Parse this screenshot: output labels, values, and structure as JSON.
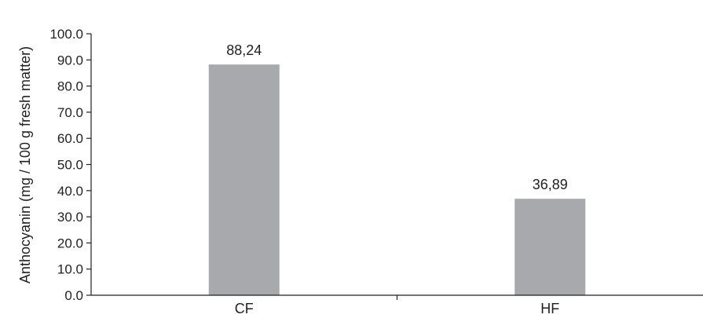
{
  "chart_data": {
    "type": "bar",
    "title": "",
    "xlabel": "",
    "ylabel": "Anthocyanin (mg / 100 g fresh matter)",
    "categories": [
      "CF",
      "HF"
    ],
    "values": [
      88.24,
      36.89
    ],
    "data_labels": [
      "88,24",
      "36,89"
    ],
    "ylim": [
      0,
      100
    ],
    "yticks": [
      0,
      10,
      20,
      30,
      40,
      50,
      60,
      70,
      80,
      90,
      100
    ],
    "ytick_labels": [
      "0.0",
      "10.0",
      "20.0",
      "30.0",
      "40.0",
      "50.0",
      "60.0",
      "70.0",
      "80.0",
      "90.0",
      "100.0"
    ],
    "bar_color": "#a7a9ac",
    "axis_color": "#231f20",
    "grid": false,
    "legend": "none"
  }
}
